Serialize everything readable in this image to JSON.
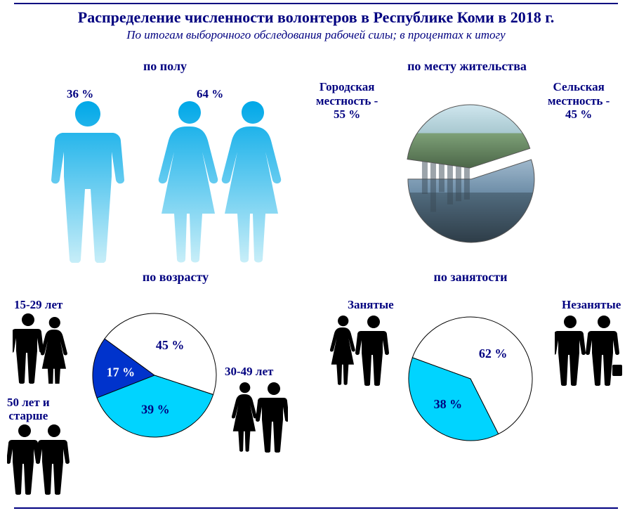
{
  "header": {
    "title": "Распределение численности волонтеров в Республике Коми в 2018 г.",
    "subtitle": "По итогам выборочного обследования рабочей силы; в процентах к итогу"
  },
  "panels": {
    "gender": {
      "title": "по полу",
      "male": {
        "label": "36 %",
        "value": 36,
        "color": "#37b6e6"
      },
      "female": {
        "label": "64 %",
        "value": 64,
        "color": "#37b6e6"
      }
    },
    "residence": {
      "title": "по месту жительства",
      "urban": {
        "label": "Городская\nместность -\n55 %",
        "value": 55
      },
      "rural": {
        "label": "Сельская\nместность -\n45 %",
        "value": 45
      },
      "pie": {
        "radius": 90,
        "slice_colors": [
          "#6fa8c8",
          "#90b890"
        ],
        "stroke": "#666666",
        "gap_deg": 8
      }
    },
    "age": {
      "title": "по возрасту",
      "labels": {
        "g1": "15-29 лет",
        "g2": "30-49 лет",
        "g3": "50 лет и\nстарше"
      },
      "pie": {
        "radius": 88,
        "slices": [
          {
            "label": "17 %",
            "value": 17,
            "color": "#0033cc",
            "text_color": "#ffffff"
          },
          {
            "label": "45 %",
            "value": 45,
            "color": "#ffffff",
            "text_color": "#000080"
          },
          {
            "label": "39 %",
            "value": 39,
            "color": "#00d4ff",
            "text_color": "#000080"
          }
        ],
        "start_angle": -115,
        "stroke": "#000000"
      }
    },
    "employment": {
      "title": "по занятости",
      "labels": {
        "employed": "Занятые",
        "unemployed": "Незанятые"
      },
      "pie": {
        "radius": 88,
        "slices": [
          {
            "label": "62 %",
            "value": 62,
            "color": "#ffffff",
            "text_color": "#000080"
          },
          {
            "label": "38 %",
            "value": 38,
            "color": "#00d4ff",
            "text_color": "#000080"
          }
        ],
        "start_angle": -70,
        "stroke": "#000000"
      }
    }
  },
  "colors": {
    "title": "#000080",
    "rule": "#000080",
    "silhouette_blue_top": "#00a8e8",
    "silhouette_blue_bot": "#b8e8f8",
    "silhouette_black": "#000000"
  }
}
